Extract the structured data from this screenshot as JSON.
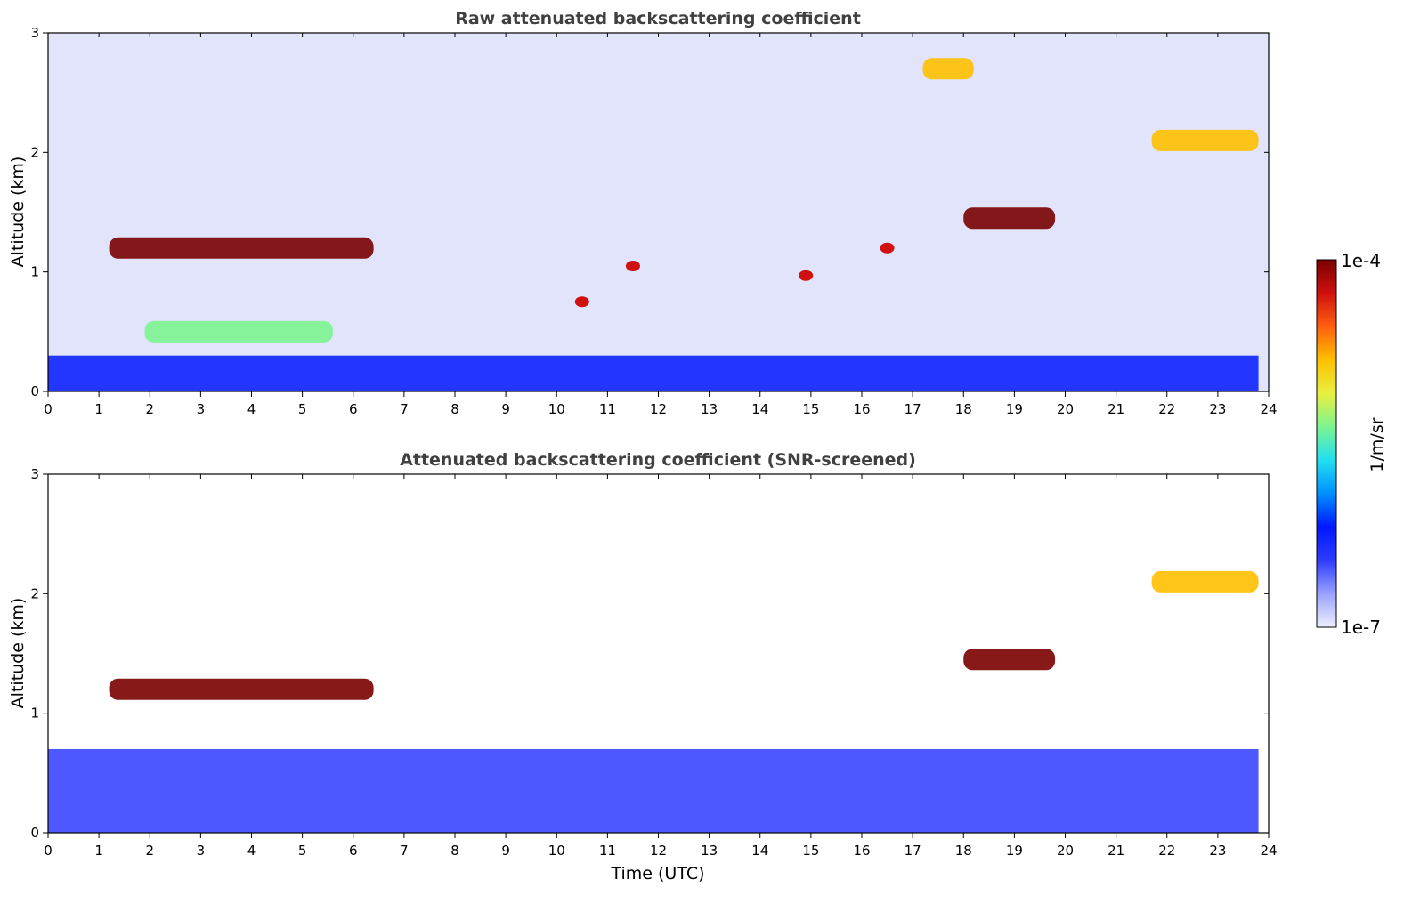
{
  "chart_data": [
    {
      "type": "heatmap",
      "title": "Raw attenuated backscattering coefficient",
      "xlabel": "",
      "ylabel": "Altitude (km)",
      "xlim": [
        0,
        24
      ],
      "ylim": [
        0,
        3
      ],
      "xticks": [
        "0",
        "1",
        "2",
        "3",
        "4",
        "5",
        "6",
        "7",
        "8",
        "9",
        "10",
        "11",
        "12",
        "13",
        "14",
        "15",
        "16",
        "17",
        "18",
        "19",
        "20",
        "21",
        "22",
        "23",
        "24"
      ],
      "yticks": [
        "0",
        "1",
        "2",
        "3"
      ],
      "features": [
        {
          "name": "boundary layer aerosol",
          "t_start": 0,
          "t_end": 23.8,
          "alt_top_km": 0.3,
          "level": 0.25
        },
        {
          "name": "stratocumulus cloud",
          "t_start": 1.2,
          "t_end": 6.4,
          "alt_km": 1.2,
          "level": 1.0
        },
        {
          "name": "virga below cloud",
          "t_start": 1.9,
          "t_end": 5.6,
          "alt_km": 0.5,
          "level": 0.55
        },
        {
          "name": "cloud fragments",
          "times": [
            10.5,
            11.5,
            14.9,
            16.5
          ],
          "alts_km": [
            0.75,
            1.05,
            0.97,
            1.2
          ],
          "level": 0.95
        },
        {
          "name": "elevated cloud",
          "t_start": 18.0,
          "t_end": 19.8,
          "alt_km": 1.45,
          "level": 1.0
        },
        {
          "name": "ice virga",
          "t_start": 17.2,
          "t_end": 18.2,
          "alt_km": 2.7,
          "level": 0.75
        },
        {
          "name": "high cloud / precipitation",
          "t_start": 21.7,
          "t_end": 23.8,
          "alt_km": 2.1,
          "level": 0.7
        }
      ]
    },
    {
      "type": "heatmap",
      "title": "Attenuated backscattering coefficient (SNR-screened)",
      "xlabel": "Time (UTC)",
      "ylabel": "Altitude (km)",
      "xlim": [
        0,
        24
      ],
      "ylim": [
        0,
        3
      ],
      "xticks": [
        "0",
        "1",
        "2",
        "3",
        "4",
        "5",
        "6",
        "7",
        "8",
        "9",
        "10",
        "11",
        "12",
        "13",
        "14",
        "15",
        "16",
        "17",
        "18",
        "19",
        "20",
        "21",
        "22",
        "23",
        "24"
      ],
      "yticks": [
        "0",
        "1",
        "2",
        "3"
      ],
      "features": [
        {
          "name": "boundary layer aerosol",
          "t_start": 0,
          "t_end": 23.8,
          "alt_top_km": 0.7,
          "level": 0.2
        },
        {
          "name": "stratocumulus cloud",
          "t_start": 1.2,
          "t_end": 6.4,
          "alt_km": 1.2,
          "level": 1.0
        },
        {
          "name": "elevated cloud",
          "t_start": 18.0,
          "t_end": 19.8,
          "alt_km": 1.45,
          "level": 1.0
        },
        {
          "name": "high cloud / precipitation",
          "t_start": 21.7,
          "t_end": 23.8,
          "alt_km": 2.1,
          "level": 0.7
        }
      ]
    }
  ],
  "colorbar": {
    "label": "1/m/sr",
    "max_label": "1e-4",
    "min_label": "1e-7",
    "scale": "log",
    "range": [
      1e-07,
      0.0001
    ],
    "colors": [
      "#eef0ff",
      "#9aa2ff",
      "#2e3cff",
      "#0018ff",
      "#0090ff",
      "#22e0f0",
      "#7cf490",
      "#e8f040",
      "#ffc000",
      "#ff6010",
      "#d01010",
      "#7a0000"
    ]
  }
}
